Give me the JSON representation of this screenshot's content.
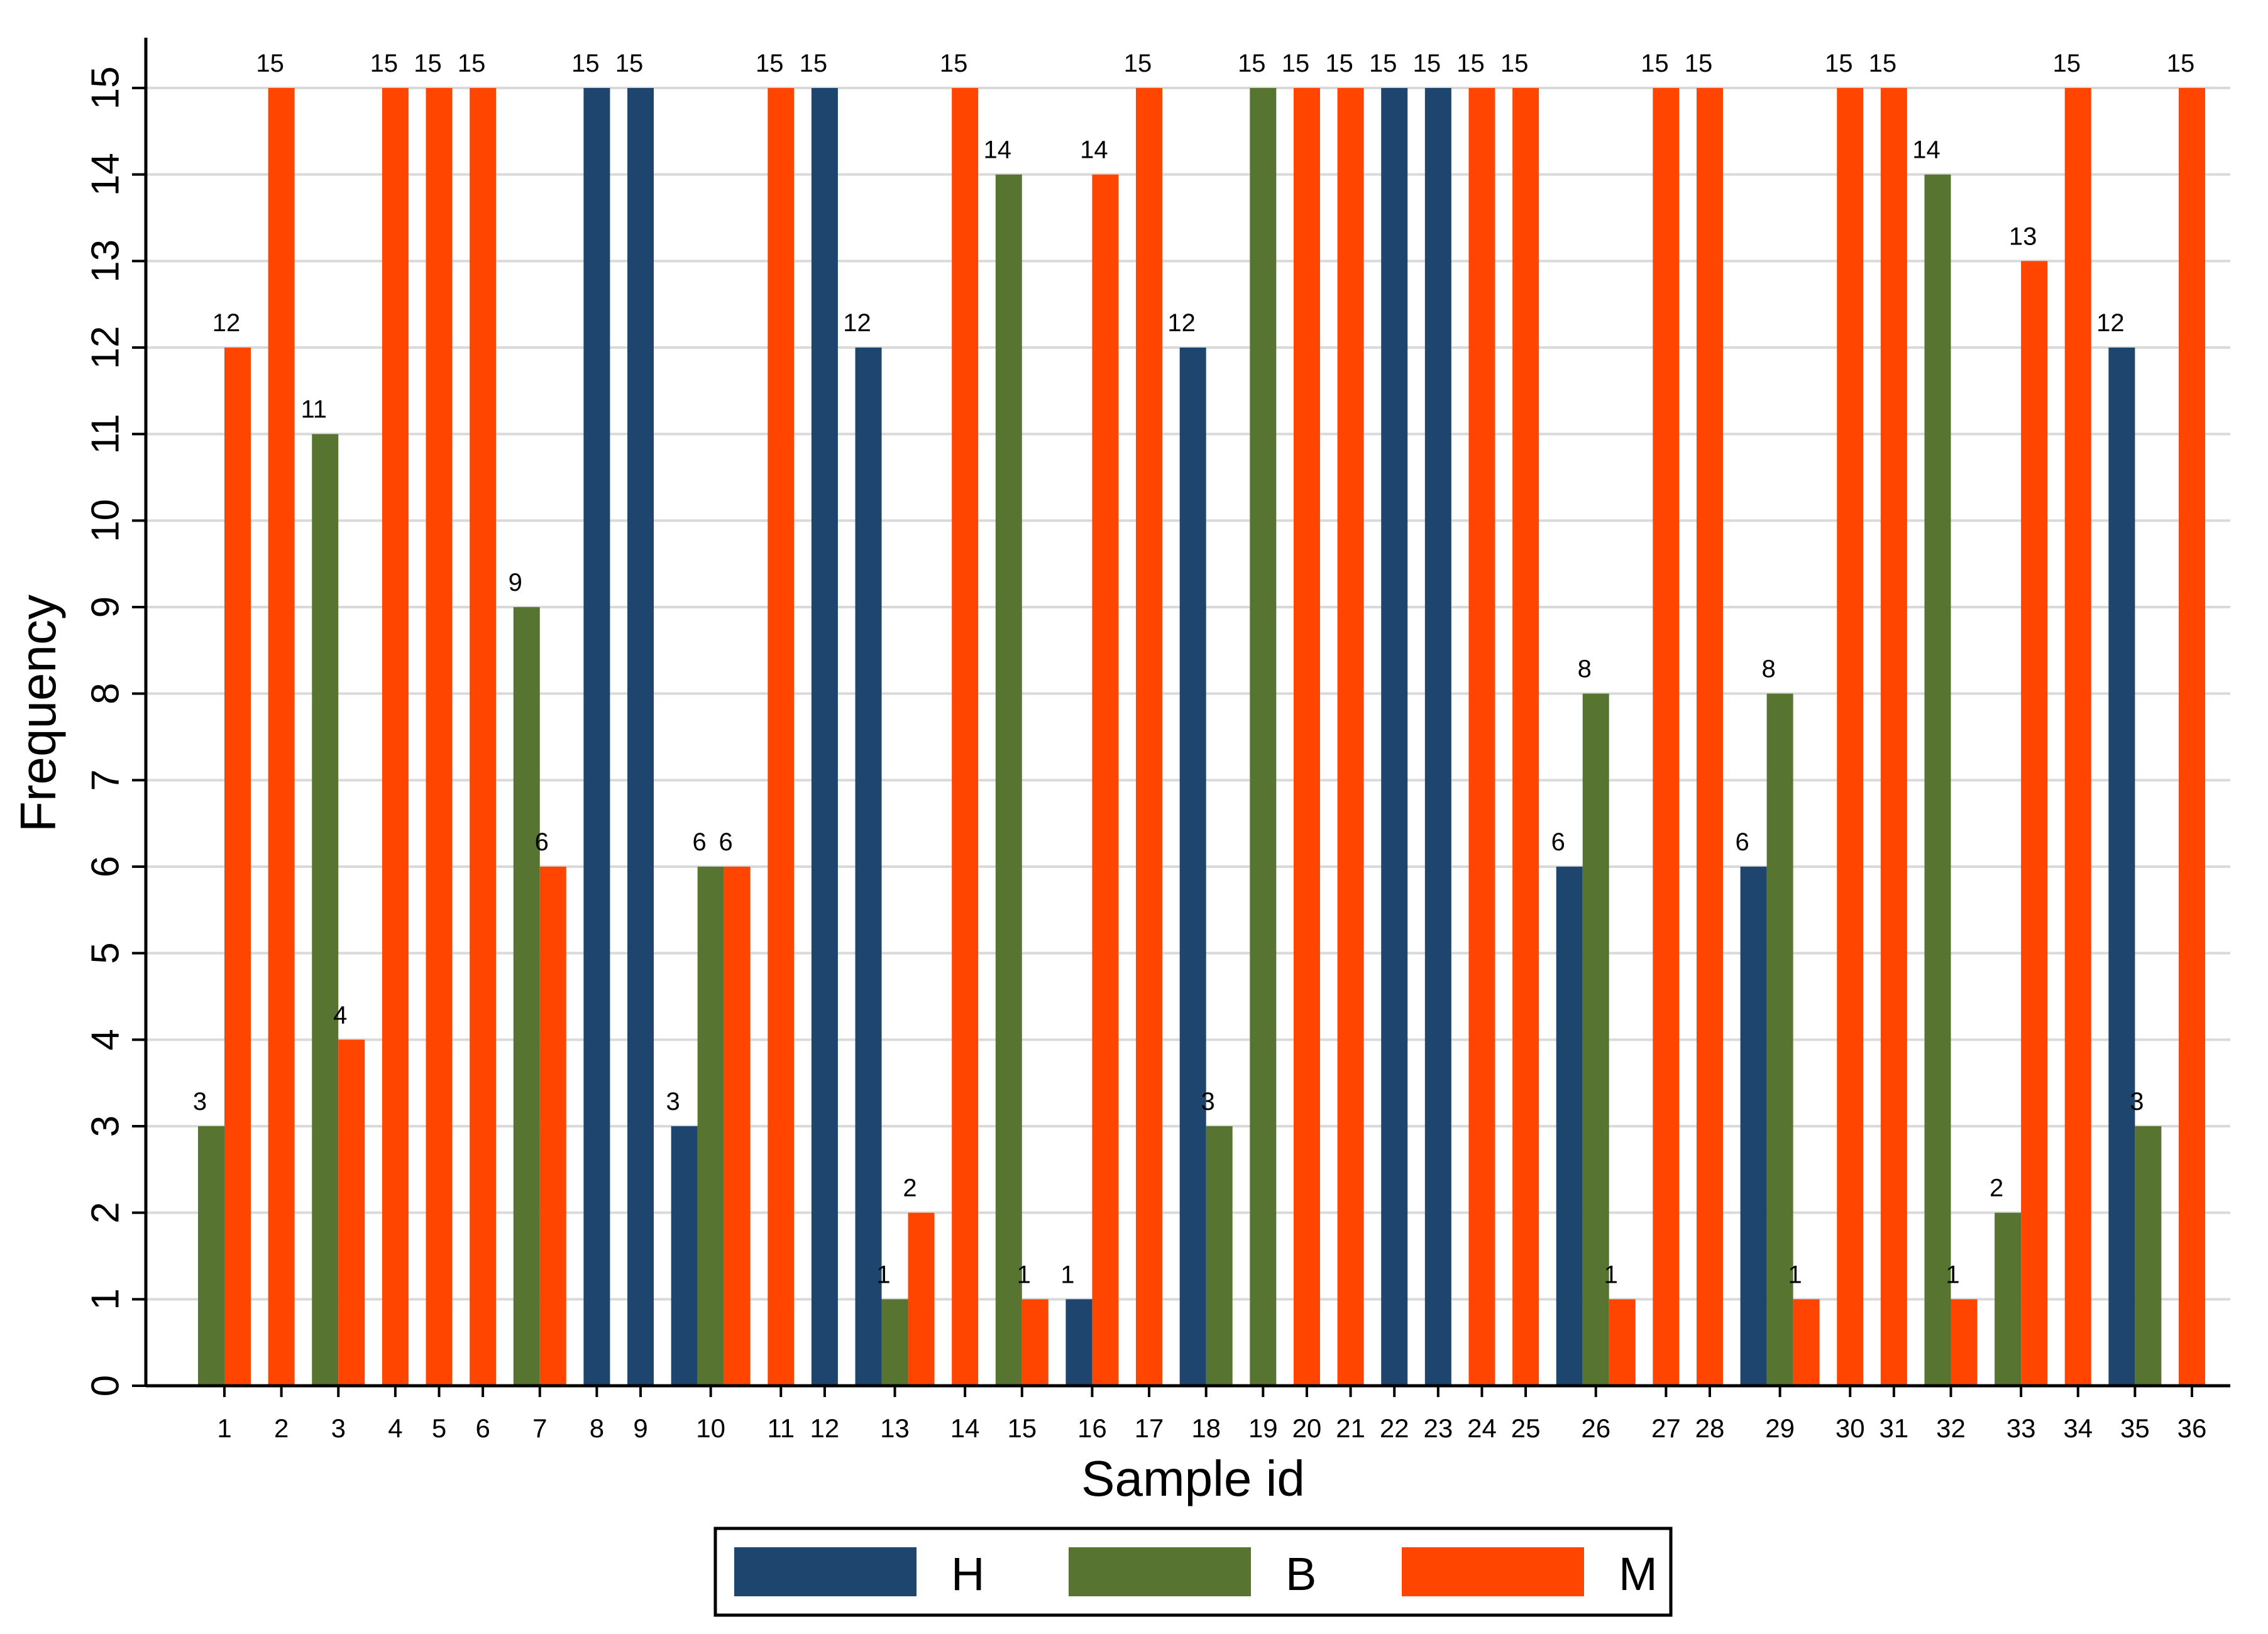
{
  "chart_data": {
    "type": "bar",
    "xlabel": "Sample id",
    "ylabel": "Frequency",
    "ylim": [
      0,
      15
    ],
    "yticks": [
      "0",
      "1",
      "2",
      "3",
      "4",
      "5",
      "6",
      "7",
      "8",
      "9",
      "10",
      "11",
      "12",
      "13",
      "14",
      "15"
    ],
    "grid": true,
    "legend_position": "bottom-center",
    "colors": {
      "H": "#1d456d",
      "B": "#577430",
      "M": "#ff4500"
    },
    "series_order": [
      "H",
      "B",
      "M"
    ],
    "samples": [
      {
        "id": "1",
        "bars": [
          {
            "series": "B",
            "value": 3
          },
          {
            "series": "M",
            "value": 12
          }
        ]
      },
      {
        "id": "2",
        "bars": [
          {
            "series": "M",
            "value": 15
          }
        ]
      },
      {
        "id": "3",
        "bars": [
          {
            "series": "B",
            "value": 11
          },
          {
            "series": "M",
            "value": 4
          }
        ]
      },
      {
        "id": "4",
        "bars": [
          {
            "series": "M",
            "value": 15
          }
        ]
      },
      {
        "id": "5",
        "bars": [
          {
            "series": "M",
            "value": 15
          }
        ]
      },
      {
        "id": "6",
        "bars": [
          {
            "series": "M",
            "value": 15
          }
        ]
      },
      {
        "id": "7",
        "bars": [
          {
            "series": "B",
            "value": 9
          },
          {
            "series": "M",
            "value": 6
          }
        ]
      },
      {
        "id": "8",
        "bars": [
          {
            "series": "H",
            "value": 15
          }
        ]
      },
      {
        "id": "9",
        "bars": [
          {
            "series": "H",
            "value": 15
          }
        ]
      },
      {
        "id": "10",
        "bars": [
          {
            "series": "H",
            "value": 3
          },
          {
            "series": "B",
            "value": 6
          },
          {
            "series": "M",
            "value": 6
          }
        ]
      },
      {
        "id": "11",
        "bars": [
          {
            "series": "M",
            "value": 15
          }
        ]
      },
      {
        "id": "12",
        "bars": [
          {
            "series": "H",
            "value": 15
          }
        ]
      },
      {
        "id": "13",
        "bars": [
          {
            "series": "H",
            "value": 12
          },
          {
            "series": "B",
            "value": 1
          },
          {
            "series": "M",
            "value": 2
          }
        ]
      },
      {
        "id": "14",
        "bars": [
          {
            "series": "M",
            "value": 15
          }
        ]
      },
      {
        "id": "15",
        "bars": [
          {
            "series": "B",
            "value": 14
          },
          {
            "series": "M",
            "value": 1
          }
        ]
      },
      {
        "id": "16",
        "bars": [
          {
            "series": "H",
            "value": 1
          },
          {
            "series": "M",
            "value": 14
          }
        ]
      },
      {
        "id": "17",
        "bars": [
          {
            "series": "M",
            "value": 15
          }
        ]
      },
      {
        "id": "18",
        "bars": [
          {
            "series": "H",
            "value": 12
          },
          {
            "series": "B",
            "value": 3
          }
        ]
      },
      {
        "id": "19",
        "bars": [
          {
            "series": "B",
            "value": 15
          }
        ]
      },
      {
        "id": "20",
        "bars": [
          {
            "series": "M",
            "value": 15
          }
        ]
      },
      {
        "id": "21",
        "bars": [
          {
            "series": "M",
            "value": 15
          }
        ]
      },
      {
        "id": "22",
        "bars": [
          {
            "series": "H",
            "value": 15
          }
        ]
      },
      {
        "id": "23",
        "bars": [
          {
            "series": "H",
            "value": 15
          }
        ]
      },
      {
        "id": "24",
        "bars": [
          {
            "series": "M",
            "value": 15
          }
        ]
      },
      {
        "id": "25",
        "bars": [
          {
            "series": "M",
            "value": 15
          }
        ]
      },
      {
        "id": "26",
        "bars": [
          {
            "series": "H",
            "value": 6
          },
          {
            "series": "B",
            "value": 8
          },
          {
            "series": "M",
            "value": 1
          }
        ]
      },
      {
        "id": "27",
        "bars": [
          {
            "series": "M",
            "value": 15
          }
        ]
      },
      {
        "id": "28",
        "bars": [
          {
            "series": "M",
            "value": 15
          }
        ]
      },
      {
        "id": "29",
        "bars": [
          {
            "series": "H",
            "value": 6
          },
          {
            "series": "B",
            "value": 8
          },
          {
            "series": "M",
            "value": 1
          }
        ]
      },
      {
        "id": "30",
        "bars": [
          {
            "series": "M",
            "value": 15
          }
        ]
      },
      {
        "id": "31",
        "bars": [
          {
            "series": "M",
            "value": 15
          }
        ]
      },
      {
        "id": "32",
        "bars": [
          {
            "series": "B",
            "value": 14
          },
          {
            "series": "M",
            "value": 1
          }
        ]
      },
      {
        "id": "33",
        "bars": [
          {
            "series": "B",
            "value": 2
          },
          {
            "series": "M",
            "value": 13
          }
        ]
      },
      {
        "id": "34",
        "bars": [
          {
            "series": "M",
            "value": 15
          }
        ]
      },
      {
        "id": "35",
        "bars": [
          {
            "series": "H",
            "value": 12
          },
          {
            "series": "B",
            "value": 3
          }
        ]
      },
      {
        "id": "36",
        "bars": [
          {
            "series": "M",
            "value": 15
          }
        ]
      }
    ],
    "legend": [
      {
        "series": "H",
        "label": "H"
      },
      {
        "series": "B",
        "label": "B"
      },
      {
        "series": "M",
        "label": "M"
      }
    ]
  }
}
